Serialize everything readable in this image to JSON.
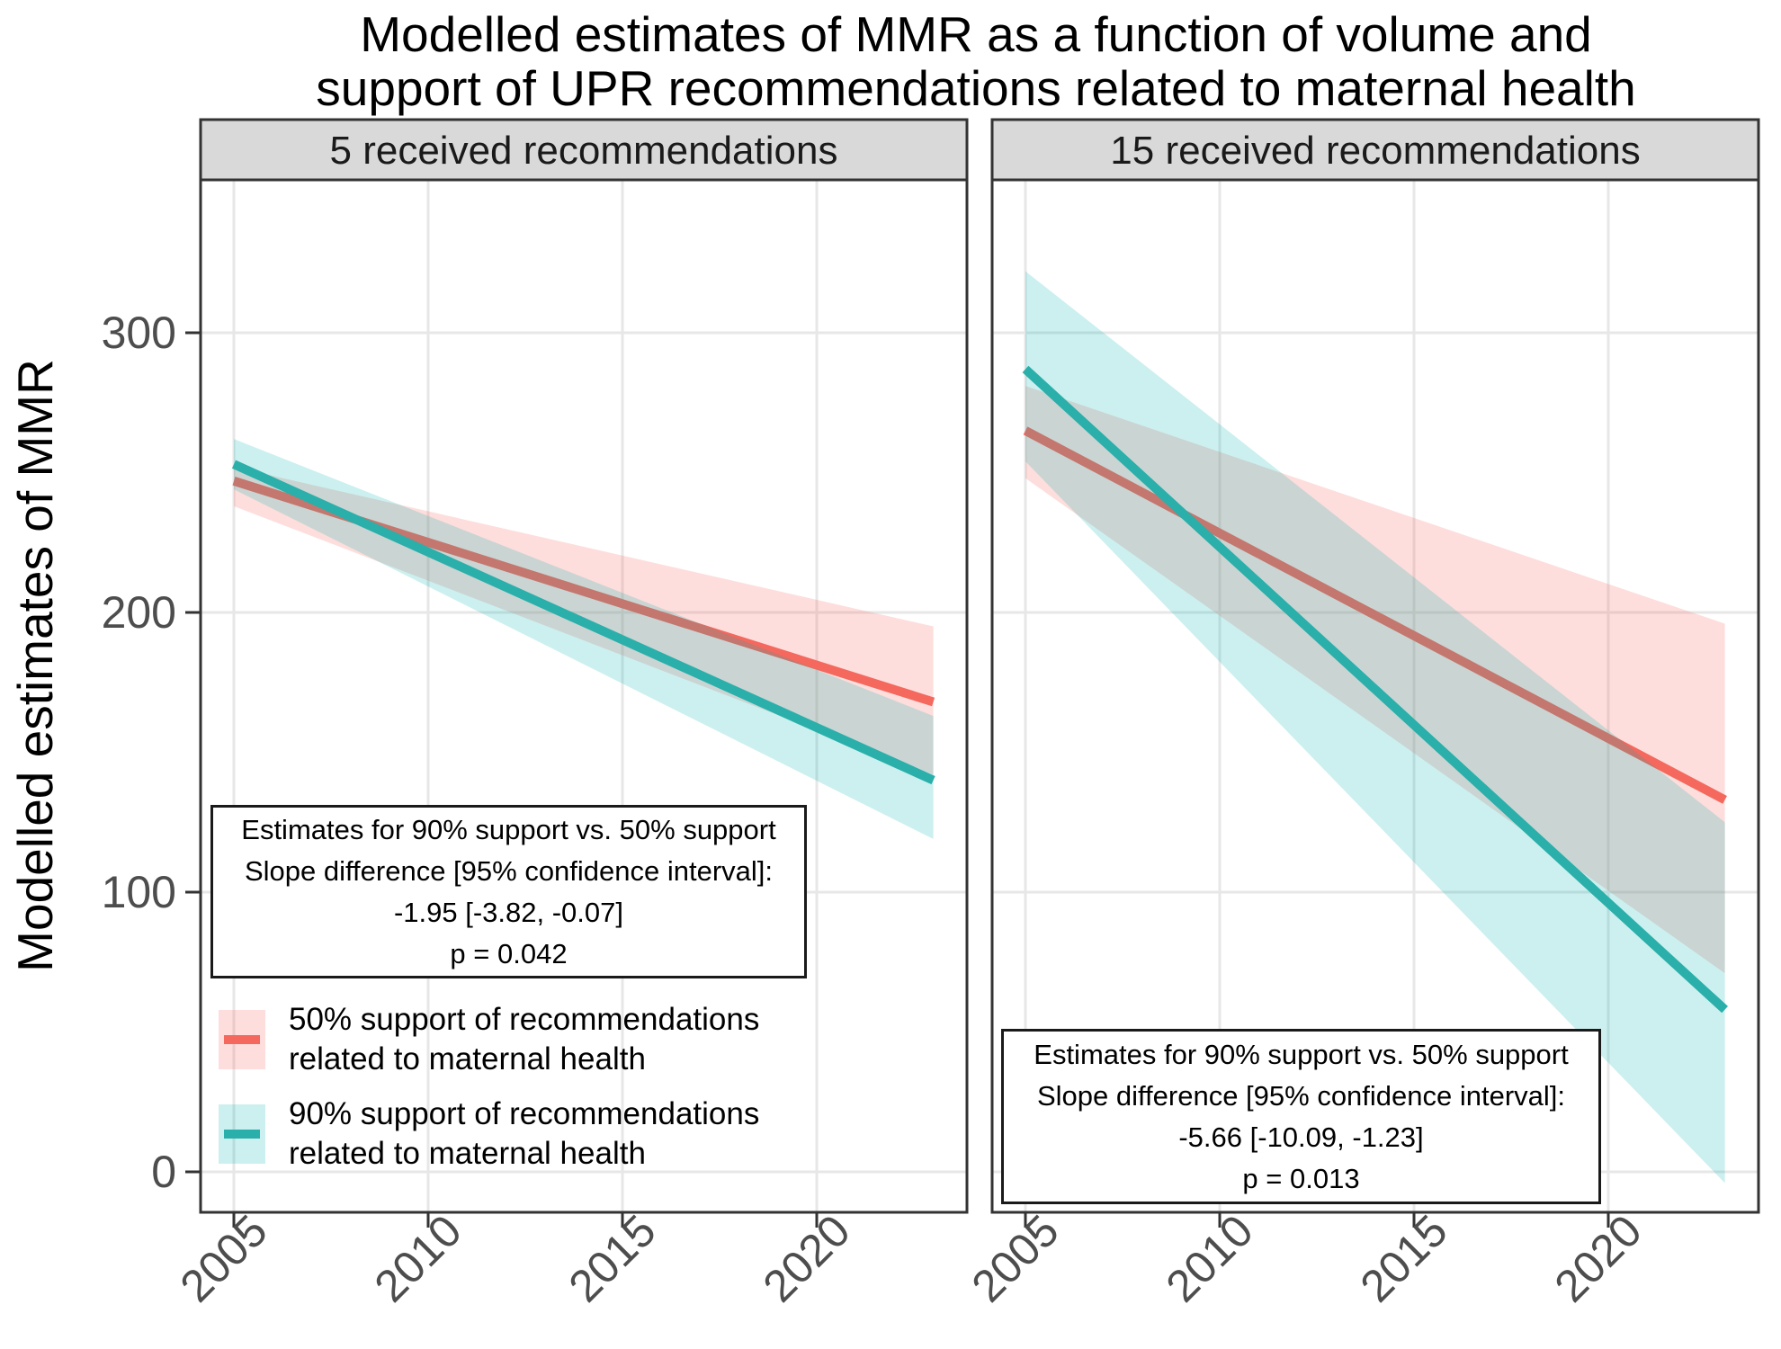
{
  "title": {
    "line1": "Modelled estimates of MMR as a function of volume and",
    "line2": "support of UPR recommendations related to maternal health"
  },
  "y_axis": {
    "label": "Modelled estimates of MMR",
    "tick_labels": [
      "0",
      "100",
      "200",
      "300"
    ]
  },
  "x_axis": {
    "tick_labels": [
      "2005",
      "2010",
      "2015",
      "2020"
    ]
  },
  "legend": {
    "items": [
      {
        "label_line1": "50% support of recommendations",
        "label_line2": "related to maternal health",
        "line_color": "#F4685E",
        "fill_color": "#F8766D",
        "fill_opacity": 0.24
      },
      {
        "label_line1": "90% support of recommendations",
        "label_line2": "related to maternal health",
        "line_color": "#2AAFAA",
        "fill_color": "#00B3B0",
        "fill_opacity": 0.2
      }
    ]
  },
  "colors": {
    "red_line": "#F4685E",
    "teal_line": "#2AAFAA",
    "pink_fill": "#F8766D",
    "cyan_fill": "#00B3B0",
    "pink_fill_opacity": 0.24,
    "cyan_fill_opacity": 0.2,
    "strip_bg": "#D9D9D9",
    "panel_border": "#333333",
    "grid": "#E7E7E7",
    "axis_text": "#4D4D4D",
    "strip_text": "#1A1A1A",
    "text": "#000000"
  },
  "chart_data": {
    "type": "line",
    "title": "Modelled estimates of MMR as a function of volume and support of UPR recommendations related to maternal health",
    "xlabel": "",
    "ylabel": "Modelled estimates of MMR",
    "x_ticks": [
      2005,
      2010,
      2015,
      2020
    ],
    "y_ticks": [
      0,
      100,
      200,
      300
    ],
    "x_range_of_lines": [
      2005,
      2023
    ],
    "ylim": [
      -15,
      355
    ],
    "grid": "major-only",
    "legend_position": "inside-left-panel-bottom",
    "facets": [
      {
        "strip_label": "5 received recommendations",
        "series": [
          {
            "name": "50% support of recommendations related to maternal health",
            "color_key": "red",
            "x": [
              2005,
              2023
            ],
            "y": [
              247,
              168
            ],
            "ci_upper": [
              252,
              195
            ],
            "ci_lower": [
              238,
              142
            ]
          },
          {
            "name": "90% support of recommendations related to maternal health",
            "color_key": "teal",
            "x": [
              2005,
              2023
            ],
            "y": [
              253,
              140
            ],
            "ci_upper": [
              262,
              163
            ],
            "ci_lower": [
              244,
              119
            ]
          }
        ],
        "annotation": {
          "line1": "Estimates for 90% support vs. 50% support",
          "line2": "Slope difference [95% confidence interval]:",
          "line3": "-1.95 [-3.82, -0.07]",
          "line4": "p = 0.042"
        }
      },
      {
        "strip_label": "15 received recommendations",
        "series": [
          {
            "name": "50% support of recommendations related to maternal health",
            "color_key": "red",
            "x": [
              2005,
              2023
            ],
            "y": [
              265,
              133
            ],
            "ci_upper": [
              281,
              196
            ],
            "ci_lower": [
              248,
              71
            ]
          },
          {
            "name": "90% support of recommendations related to maternal health",
            "color_key": "teal",
            "x": [
              2005,
              2023
            ],
            "y": [
              287,
              58
            ],
            "ci_upper": [
              322,
              125
            ],
            "ci_lower": [
              254,
              -4
            ]
          }
        ],
        "annotation": {
          "line1": "Estimates for 90% support vs. 50% support",
          "line2": "Slope difference [95% confidence interval]:",
          "line3": "-5.66 [-10.09, -1.23]",
          "line4": "p = 0.013"
        }
      }
    ]
  }
}
